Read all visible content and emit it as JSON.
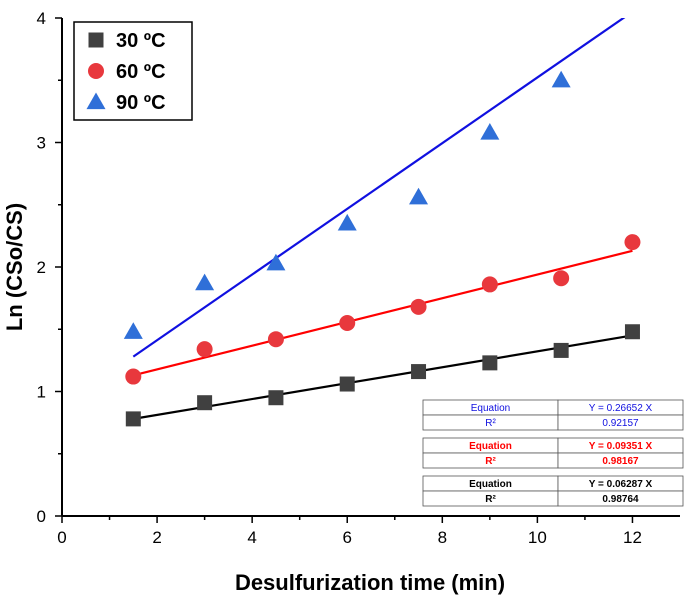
{
  "chart_data": {
    "type": "scatter",
    "title": "",
    "xlabel": "Desulfurization time (min)",
    "ylabel": "Ln (CSo/CS)",
    "xlim": [
      0,
      13
    ],
    "ylim": [
      0,
      4
    ],
    "xticks": [
      "0",
      "2",
      "4",
      "6",
      "8",
      "10",
      "12"
    ],
    "yticks": [
      "0",
      "1",
      "2",
      "3",
      "4"
    ],
    "legend_position": "top-left",
    "series": [
      {
        "name": "30 ºC",
        "marker": "square",
        "color": "#404040",
        "fit_color": "#000000",
        "x": [
          1.5,
          3,
          4.5,
          6,
          7.5,
          9,
          10.5,
          12
        ],
        "y": [
          0.78,
          0.91,
          0.95,
          1.06,
          1.16,
          1.23,
          1.33,
          1.48
        ],
        "fit_line": {
          "x": [
            1.5,
            12
          ],
          "y": [
            0.78,
            1.45
          ]
        },
        "equation_label": "Equation",
        "equation": "Y = 0.06287 X",
        "r2_label": "R²",
        "r2": "0.98764"
      },
      {
        "name": "60 ºC",
        "marker": "circle",
        "color": "#e8383d",
        "fit_color": "#ff0000",
        "x": [
          1.5,
          3,
          4.5,
          6,
          7.5,
          9,
          10.5,
          12
        ],
        "y": [
          1.12,
          1.34,
          1.42,
          1.55,
          1.68,
          1.86,
          1.91,
          2.2
        ],
        "fit_line": {
          "x": [
            1.5,
            12
          ],
          "y": [
            1.13,
            2.13
          ]
        },
        "equation_label": "Equation",
        "equation": "Y = 0.09351 X",
        "r2_label": "R²",
        "r2": "0.98167"
      },
      {
        "name": "90 ºC",
        "marker": "triangle",
        "color": "#2f6fd8",
        "fit_color": "#1010e0",
        "x": [
          1.5,
          3,
          4.5,
          6,
          7.5,
          9,
          10.5
        ],
        "y": [
          1.48,
          1.87,
          2.03,
          2.35,
          2.56,
          3.08,
          3.5
        ],
        "fit_line": {
          "x": [
            1.5,
            12
          ],
          "y": [
            1.28,
            4.05
          ]
        },
        "equation_label": "Equation",
        "equation": "Y = 0.26652 X",
        "r2_label": "R²",
        "r2": "0.92157"
      }
    ],
    "equation_table_order": [
      2,
      1,
      0
    ]
  }
}
